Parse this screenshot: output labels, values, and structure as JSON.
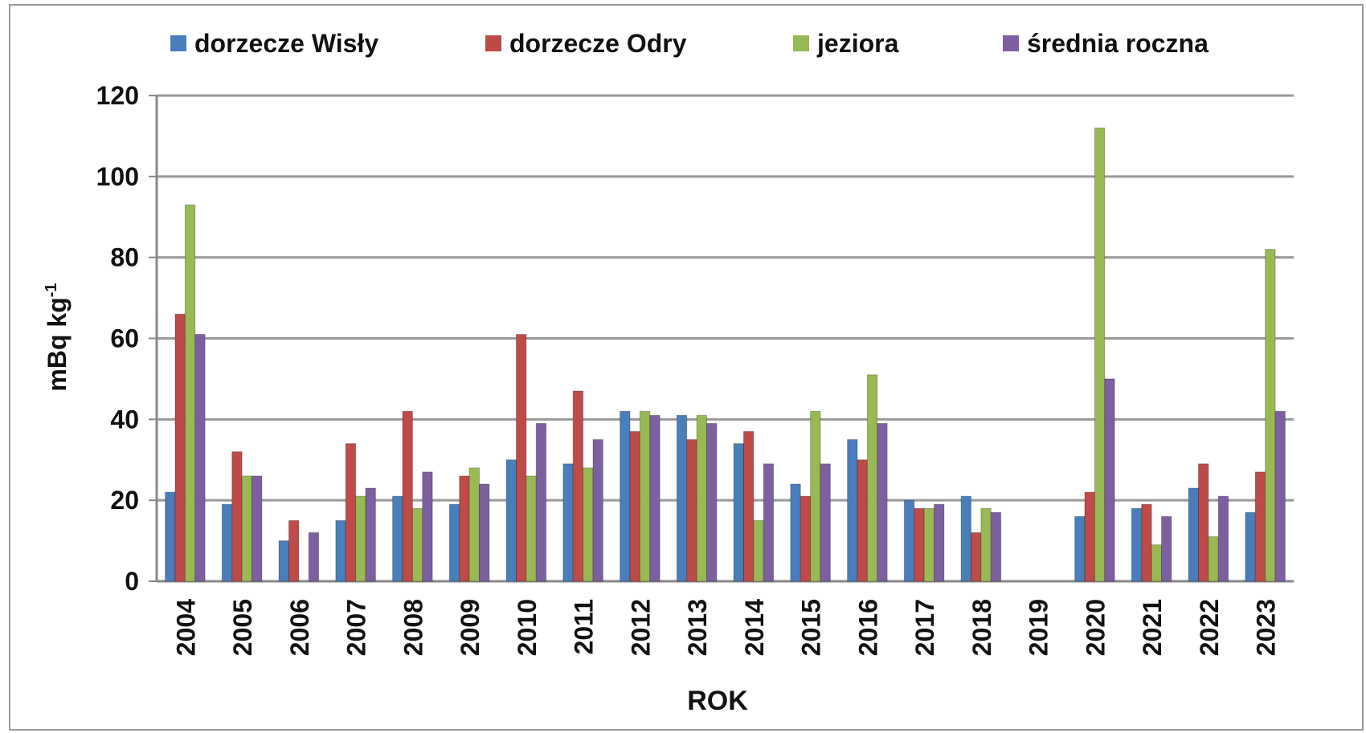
{
  "chart_data": {
    "type": "bar",
    "categories": [
      "2004",
      "2005",
      "2006",
      "2007",
      "2008",
      "2009",
      "2010",
      "2011",
      "2012",
      "2013",
      "2014",
      "2015",
      "2016",
      "2017",
      "2018",
      "2019",
      "2020",
      "2021",
      "2022",
      "2023"
    ],
    "series": [
      {
        "name": "dorzecze Wisły",
        "color": "#4a7ebb",
        "values": [
          22,
          19,
          10,
          15,
          21,
          19,
          30,
          29,
          42,
          41,
          34,
          24,
          35,
          20,
          21,
          null,
          16,
          18,
          23,
          17
        ]
      },
      {
        "name": "dorzecze Odry",
        "color": "#be4b48",
        "values": [
          66,
          32,
          15,
          34,
          42,
          26,
          61,
          47,
          37,
          35,
          37,
          21,
          30,
          18,
          12,
          null,
          22,
          19,
          29,
          27
        ]
      },
      {
        "name": "jeziora",
        "color": "#98b954",
        "values": [
          93,
          26,
          null,
          21,
          18,
          28,
          26,
          28,
          42,
          41,
          15,
          42,
          51,
          18,
          18,
          null,
          112,
          9,
          11,
          82
        ]
      },
      {
        "name": "średnia roczna",
        "color": "#7d60a0",
        "values": [
          61,
          26,
          12,
          23,
          27,
          24,
          39,
          35,
          41,
          39,
          29,
          29,
          39,
          19,
          17,
          null,
          50,
          16,
          21,
          42
        ]
      }
    ],
    "xlabel": "ROK",
    "ylabel": "mBq kg",
    "ylabel_sup": "-1",
    "ylim": [
      0,
      120
    ],
    "yticks": [
      0,
      20,
      40,
      60,
      80,
      100,
      120
    ],
    "grid": true,
    "legend": "top"
  }
}
